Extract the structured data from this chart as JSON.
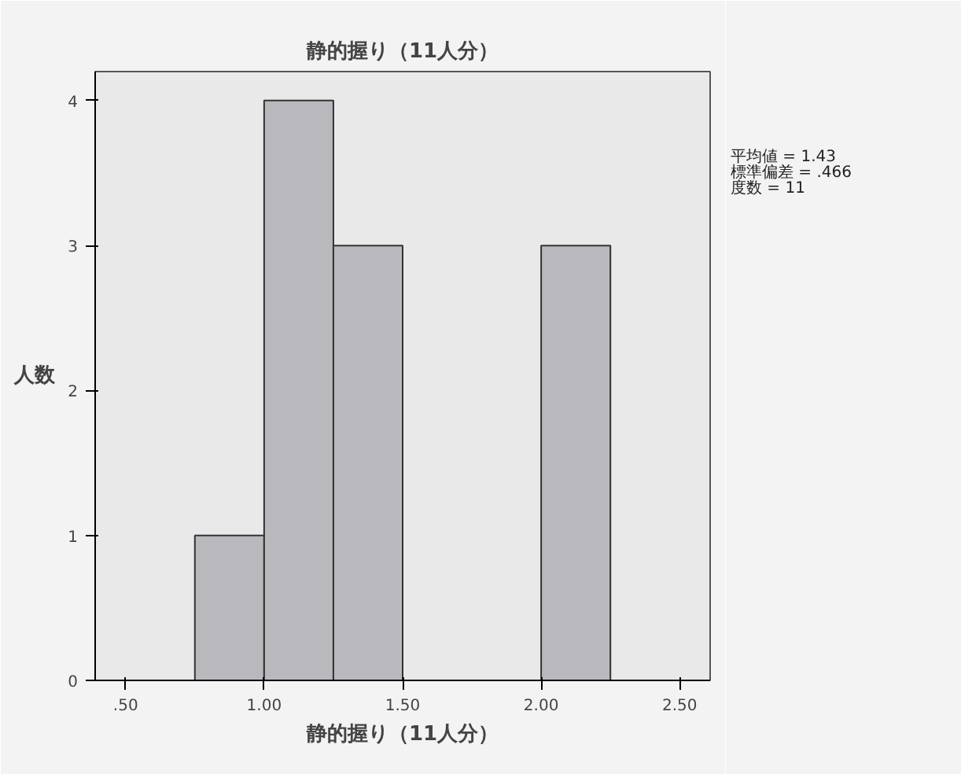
{
  "chart_data": {
    "type": "histogram",
    "title": "静的握り（11人分）",
    "xlabel": "静的握り（11人分）",
    "ylabel": "人数",
    "bins": [
      0.75,
      1.0,
      1.25,
      1.5,
      1.75,
      2.0,
      2.25
    ],
    "values": [
      1,
      4,
      3,
      0,
      0,
      3
    ],
    "color": "#b9b9bd",
    "xlim": [
      0.39,
      2.61
    ],
    "xticks": [
      {
        "value": 0.5,
        "label": ".50"
      },
      {
        "value": 1.0,
        "label": "1.00"
      },
      {
        "value": 1.5,
        "label": "1.50"
      },
      {
        "value": 2.0,
        "label": "2.00"
      },
      {
        "value": 2.5,
        "label": "2.50"
      }
    ],
    "ylim": [
      0,
      4.2
    ],
    "yticks": [
      0,
      1,
      2,
      3,
      4
    ],
    "grid": false,
    "annotations": [
      "平均値 = 1.43",
      "標準偏差 = .466",
      "度数 = 11"
    ]
  }
}
